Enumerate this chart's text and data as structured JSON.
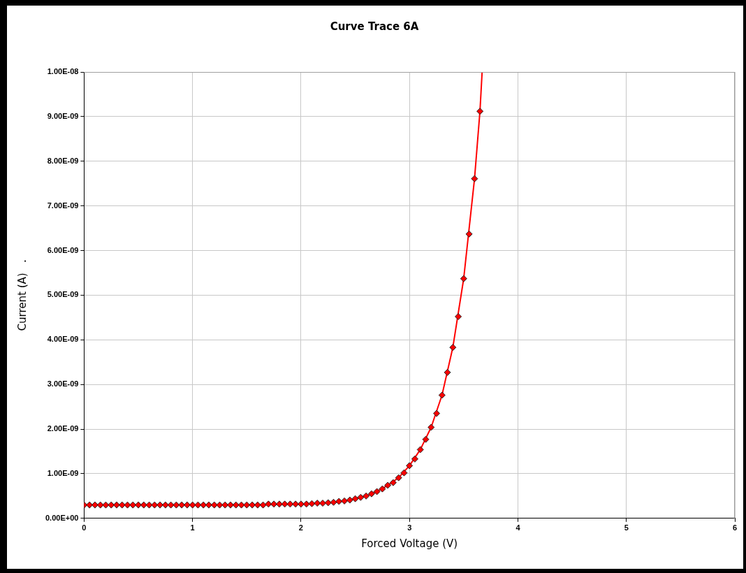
{
  "chart_data": {
    "type": "scatter",
    "title": "Curve Trace 6A",
    "xlabel": "Forced Voltage (V)",
    "ylabel": "Current (A)   .",
    "xlim": [
      0,
      6
    ],
    "xticks": [
      0,
      1,
      2,
      3,
      4,
      5,
      6
    ],
    "ylim": [
      0,
      1e-08
    ],
    "yticks": [
      {
        "value": 0,
        "label": "0.00E+00"
      },
      {
        "value": 1e-09,
        "label": "1.00E-09"
      },
      {
        "value": 2e-09,
        "label": "2.00E-09"
      },
      {
        "value": 3e-09,
        "label": "3.00E-09"
      },
      {
        "value": 4e-09,
        "label": "4.00E-09"
      },
      {
        "value": 5e-09,
        "label": "5.00E-09"
      },
      {
        "value": 6e-09,
        "label": "6.00E-09"
      },
      {
        "value": 7e-09,
        "label": "7.00E-09"
      },
      {
        "value": 8e-09,
        "label": "8.00E-09"
      },
      {
        "value": 9e-09,
        "label": "9.00E-09"
      },
      {
        "value": 1e-08,
        "label": "1.00E-08"
      }
    ],
    "grid": true,
    "legend": false,
    "x": [
      0,
      0.05,
      0.1,
      0.15,
      0.2,
      0.25,
      0.3,
      0.35,
      0.4,
      0.45,
      0.5,
      0.55,
      0.6,
      0.65,
      0.7,
      0.75,
      0.8,
      0.85,
      0.9,
      0.95,
      1,
      1.05,
      1.1,
      1.15,
      1.2,
      1.25,
      1.3,
      1.35,
      1.4,
      1.45,
      1.5,
      1.55,
      1.6,
      1.65,
      1.7,
      1.75,
      1.8,
      1.85,
      1.9,
      1.95,
      2,
      2.05,
      2.1,
      2.15,
      2.2,
      2.25,
      2.3,
      2.35,
      2.4,
      2.45,
      2.5,
      2.55,
      2.6,
      2.65,
      2.7,
      2.75,
      2.8,
      2.85,
      2.9,
      2.95,
      3,
      3.05,
      3.1,
      3.15,
      3.2,
      3.25,
      3.3,
      3.35,
      3.4,
      3.45,
      3.5,
      3.55,
      3.6,
      3.65
    ],
    "series": [
      {
        "type": "line",
        "marker": "none",
        "color": "#ff0000",
        "x": [
          0,
          0.5,
          1,
          1.5,
          2,
          2.1,
          2.2,
          2.3,
          2.4,
          2.5,
          2.6,
          2.7,
          2.8,
          2.9,
          3,
          3.1,
          3.2,
          3.3,
          3.4,
          3.5,
          3.6,
          3.65,
          3.67
        ],
        "values": [
          3e-10,
          3e-10,
          3e-10,
          3e-10,
          3.2e-10,
          3.3e-10,
          3.4e-10,
          3.6e-10,
          3.9e-10,
          4.4e-10,
          5e-10,
          6e-10,
          7.4e-10,
          9.1e-10,
          1.18e-09,
          1.54e-09,
          2.04e-09,
          2.76e-09,
          3.83e-09,
          5.37e-09,
          7.61e-09,
          9.12e-09,
          1e-08
        ]
      },
      {
        "type": "scatter",
        "marker": "diamond",
        "color": "#ff0000",
        "values": [
          3e-10,
          3e-10,
          3e-10,
          3e-10,
          3e-10,
          3e-10,
          3e-10,
          3e-10,
          3e-10,
          3e-10,
          3e-10,
          3e-10,
          3e-10,
          3e-10,
          3e-10,
          3e-10,
          3e-10,
          3e-10,
          3e-10,
          3e-10,
          3e-10,
          3e-10,
          3e-10,
          3e-10,
          3e-10,
          3e-10,
          3e-10,
          3e-10,
          3e-10,
          3e-10,
          3e-10,
          3e-10,
          3e-10,
          3e-10,
          3.2e-10,
          3.2e-10,
          3.2e-10,
          3.2e-10,
          3.2e-10,
          3.2e-10,
          3.2e-10,
          3.2e-10,
          3.3e-10,
          3.4e-10,
          3.4e-10,
          3.5e-10,
          3.6e-10,
          3.8e-10,
          3.9e-10,
          4.1e-10,
          4.4e-10,
          4.7e-10,
          5e-10,
          5.5e-10,
          6e-10,
          6.6e-10,
          7.4e-10,
          8e-10,
          9.1e-10,
          1.02e-09,
          1.18e-09,
          1.33e-09,
          1.54e-09,
          1.77e-09,
          2.04e-09,
          2.35e-09,
          2.76e-09,
          3.27e-09,
          3.83e-09,
          4.52e-09,
          5.37e-09,
          6.37e-09,
          7.61e-09,
          9.12e-09
        ]
      }
    ]
  }
}
